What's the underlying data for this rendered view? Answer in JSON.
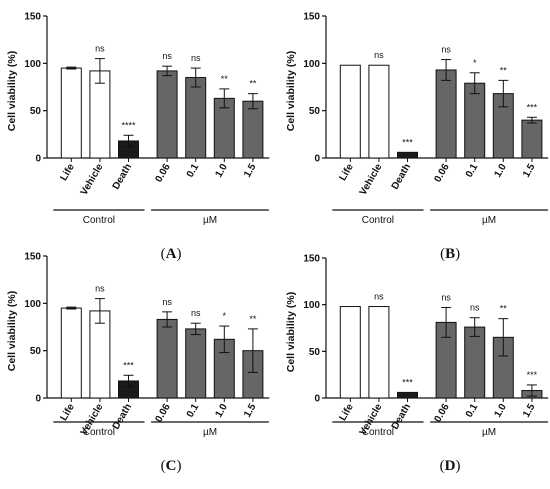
{
  "panels": [
    {
      "letter": "A",
      "ylabel": "Cell viability (%)",
      "yticks": [
        0,
        50,
        100,
        150
      ],
      "group_labels": {
        "control": "Control",
        "treatment": "µM"
      }
    },
    {
      "letter": "B",
      "ylabel": "Cell viability (%)",
      "yticks": [
        0,
        50,
        100,
        150
      ],
      "group_labels": {
        "control": "Control",
        "treatment": "µM"
      }
    },
    {
      "letter": "C",
      "ylabel": "Cell viability (%)",
      "yticks": [
        0,
        50,
        100,
        150
      ],
      "group_labels": {
        "control": "Control",
        "treatment": "µM"
      }
    },
    {
      "letter": "D",
      "ylabel": "Cell viability (%)",
      "yticks": [
        0,
        50,
        100,
        150
      ],
      "group_labels": {
        "control": "Control",
        "treatment": "µM"
      }
    }
  ],
  "chart_data": [
    {
      "type": "bar",
      "panel": "A",
      "categories": [
        "Life",
        "Vehicle",
        "Death",
        "0.06",
        "0.1",
        "1.0",
        "1.5"
      ],
      "values": [
        95,
        92,
        18,
        92,
        85,
        63,
        60
      ],
      "errors": [
        1,
        13,
        6,
        5,
        10,
        10,
        8
      ],
      "significance": [
        "",
        "ns",
        "****",
        "ns",
        "ns",
        "**",
        "**"
      ],
      "fills": [
        "#ffffff",
        "#ffffff",
        "#1a1a1a",
        "#666666",
        "#666666",
        "#666666",
        "#666666"
      ],
      "ylabel": "Cell viability (%)",
      "ylim": [
        0,
        150
      ],
      "grid": false
    },
    {
      "type": "bar",
      "panel": "B",
      "categories": [
        "Life",
        "Vehicle",
        "Death",
        "0.06",
        "0.1",
        "1.0",
        "1.5"
      ],
      "values": [
        98,
        98,
        6,
        93,
        79,
        68,
        40
      ],
      "errors": [
        0,
        0,
        0,
        11,
        11,
        14,
        3
      ],
      "significance": [
        "",
        "ns",
        "***",
        "ns",
        "*",
        "**",
        "***"
      ],
      "fills": [
        "#ffffff",
        "#ffffff",
        "#1a1a1a",
        "#666666",
        "#666666",
        "#666666",
        "#666666"
      ],
      "ylabel": "Cell viability (%)",
      "ylim": [
        0,
        150
      ],
      "grid": false
    },
    {
      "type": "bar",
      "panel": "C",
      "categories": [
        "Life",
        "Vehicle",
        "Death",
        "0.06",
        "0.1",
        "1.0",
        "1.5"
      ],
      "values": [
        95,
        92,
        18,
        83,
        73,
        62,
        50
      ],
      "errors": [
        1,
        13,
        6,
        8,
        6,
        14,
        23
      ],
      "significance": [
        "",
        "ns",
        "***",
        "ns",
        "ns",
        "*",
        "**"
      ],
      "fills": [
        "#ffffff",
        "#ffffff",
        "#1a1a1a",
        "#666666",
        "#666666",
        "#666666",
        "#666666"
      ],
      "ylabel": "Cell viability (%)",
      "ylim": [
        0,
        150
      ],
      "grid": false
    },
    {
      "type": "bar",
      "panel": "D",
      "categories": [
        "Life",
        "Vehicle",
        "Death",
        "0.06",
        "0.1",
        "1.0",
        "1.5"
      ],
      "values": [
        98,
        98,
        6,
        81,
        76,
        65,
        8
      ],
      "errors": [
        0,
        0,
        0,
        16,
        10,
        20,
        6
      ],
      "significance": [
        "",
        "ns",
        "***",
        "ns",
        "ns",
        "**",
        "***"
      ],
      "fills": [
        "#ffffff",
        "#ffffff",
        "#1a1a1a",
        "#666666",
        "#666666",
        "#666666",
        "#666666"
      ],
      "ylabel": "Cell viability (%)",
      "ylim": [
        0,
        150
      ],
      "grid": false
    }
  ]
}
